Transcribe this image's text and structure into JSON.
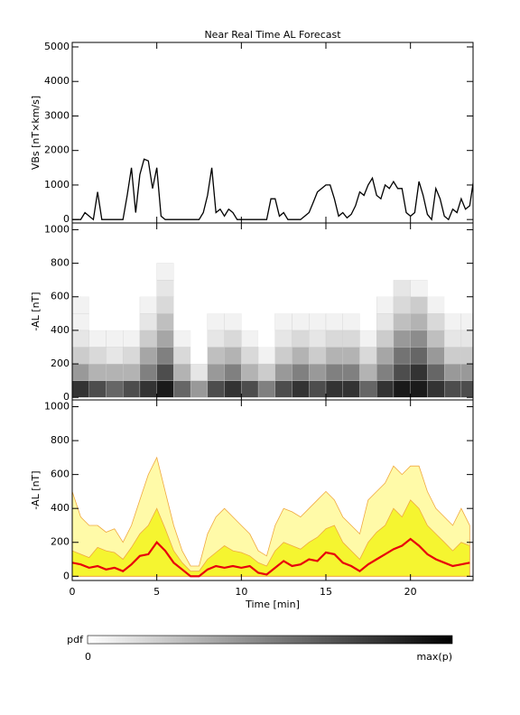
{
  "chart_data": [
    {
      "type": "line",
      "title": "Near Real Time AL Forecast",
      "ylabel": "VBs [nT×km/s]",
      "x": [
        0,
        0.25,
        0.5,
        0.75,
        1,
        1.25,
        1.5,
        1.75,
        2,
        2.25,
        2.5,
        2.75,
        3,
        3.25,
        3.5,
        3.75,
        4,
        4.25,
        4.5,
        4.75,
        5,
        5.25,
        5.5,
        5.75,
        6,
        6.25,
        6.5,
        6.75,
        7,
        7.25,
        7.5,
        7.75,
        8,
        8.25,
        8.5,
        8.75,
        9,
        9.25,
        9.5,
        9.75,
        10,
        10.25,
        10.5,
        10.75,
        11,
        11.25,
        11.5,
        11.75,
        12,
        12.25,
        12.5,
        12.75,
        13,
        13.25,
        13.5,
        13.75,
        14,
        14.25,
        14.5,
        14.75,
        15,
        15.25,
        15.5,
        15.75,
        16,
        16.25,
        16.5,
        16.75,
        17,
        17.25,
        17.5,
        17.75,
        18,
        18.25,
        18.5,
        18.75,
        19,
        19.25,
        19.5,
        19.75,
        20,
        20.25,
        20.5,
        20.75,
        21,
        21.25,
        21.5,
        21.75,
        22,
        22.25,
        22.5,
        22.75,
        23,
        23.25,
        23.5,
        23.75
      ],
      "series": [
        {
          "color": "#000000",
          "values": [
            0,
            0,
            0,
            200,
            100,
            0,
            800,
            0,
            0,
            0,
            0,
            0,
            0,
            700,
            1500,
            200,
            1300,
            1750,
            1700,
            900,
            1500,
            100,
            0,
            0,
            0,
            0,
            0,
            0,
            0,
            0,
            0,
            200,
            700,
            1500,
            200,
            300,
            100,
            300,
            200,
            0,
            0,
            0,
            0,
            0,
            0,
            0,
            0,
            600,
            600,
            100,
            200,
            0,
            0,
            0,
            0,
            100,
            200,
            500,
            800,
            900,
            1000,
            1000,
            600,
            100,
            200,
            50,
            150,
            400,
            800,
            700,
            1000,
            1200,
            700,
            600,
            1000,
            900,
            1100,
            900,
            900,
            200,
            100,
            200,
            1100,
            700,
            150,
            0,
            900,
            600,
            100,
            0,
            300,
            200,
            600,
            300,
            400,
            1200
          ]
        }
      ],
      "xlim": [
        0,
        23.7
      ],
      "xticks": [
        0,
        5,
        10,
        15,
        20
      ],
      "show_xtick_labels": false,
      "ylim": [
        -100,
        5130
      ],
      "yticks": [
        0,
        1000,
        2000,
        3000,
        4000,
        5000
      ]
    },
    {
      "type": "heatmap",
      "ylabel": "-AL [nT]",
      "xbins": [
        0,
        1,
        2,
        3,
        4,
        5,
        6,
        7,
        8,
        9,
        10,
        11,
        12,
        13,
        14,
        15,
        16,
        17,
        18,
        19,
        20,
        21,
        22,
        23,
        24
      ],
      "ybins": [
        0,
        100,
        200,
        300,
        400,
        500,
        600,
        700,
        800
      ],
      "z": [
        [
          0.8,
          0.7,
          0.6,
          0.7,
          0.8,
          0.9,
          0.6,
          0.4,
          0.7,
          0.8,
          0.7,
          0.5,
          0.7,
          0.8,
          0.7,
          0.8,
          0.8,
          0.6,
          0.8,
          0.9,
          0.9,
          0.8,
          0.7,
          0.7
        ],
        [
          0.4,
          0.3,
          0.3,
          0.3,
          0.5,
          0.7,
          0.3,
          0.1,
          0.4,
          0.5,
          0.3,
          0.2,
          0.4,
          0.5,
          0.4,
          0.5,
          0.5,
          0.3,
          0.5,
          0.7,
          0.8,
          0.6,
          0.4,
          0.4
        ],
        [
          0.2,
          0.15,
          0.1,
          0.15,
          0.35,
          0.5,
          0.15,
          0,
          0.25,
          0.3,
          0.15,
          0.05,
          0.2,
          0.3,
          0.2,
          0.3,
          0.3,
          0.15,
          0.35,
          0.55,
          0.6,
          0.4,
          0.2,
          0.2
        ],
        [
          0.1,
          0.05,
          0.05,
          0.05,
          0.2,
          0.35,
          0.05,
          0,
          0.1,
          0.15,
          0.05,
          0,
          0.1,
          0.15,
          0.1,
          0.15,
          0.15,
          0.05,
          0.2,
          0.4,
          0.45,
          0.25,
          0.1,
          0.1
        ],
        [
          0.05,
          0,
          0,
          0,
          0.1,
          0.25,
          0,
          0,
          0.05,
          0.05,
          0,
          0,
          0.05,
          0.05,
          0.05,
          0.05,
          0.05,
          0,
          0.1,
          0.25,
          0.3,
          0.15,
          0.05,
          0.05
        ],
        [
          0.05,
          0,
          0,
          0,
          0.05,
          0.15,
          0,
          0,
          0,
          0,
          0,
          0,
          0,
          0,
          0,
          0,
          0,
          0,
          0.05,
          0.15,
          0.2,
          0.05,
          0,
          0
        ],
        [
          0,
          0,
          0,
          0,
          0,
          0.1,
          0,
          0,
          0,
          0,
          0,
          0,
          0,
          0,
          0,
          0,
          0,
          0,
          0,
          0.1,
          0.05,
          0,
          0,
          0
        ],
        [
          0,
          0,
          0,
          0,
          0,
          0.05,
          0,
          0,
          0,
          0,
          0,
          0,
          0,
          0,
          0,
          0,
          0,
          0,
          0,
          0,
          0,
          0,
          0,
          0
        ]
      ],
      "colormap": [
        "#ffffff",
        "#000000"
      ],
      "colorbar": {
        "label": "pdf",
        "min_label": "0",
        "max_label": "max(p)"
      },
      "xlim": [
        0,
        23.7
      ],
      "xticks": [
        0,
        5,
        10,
        15,
        20
      ],
      "show_xtick_labels": false,
      "ylim": [
        -15,
        1040
      ],
      "yticks": [
        0,
        200,
        400,
        600,
        800,
        1000
      ]
    },
    {
      "type": "band",
      "ylabel": "-AL [nT]",
      "xlabel": "Time [min]",
      "x": [
        0,
        0.5,
        1,
        1.5,
        2,
        2.5,
        3,
        3.5,
        4,
        4.5,
        5,
        5.5,
        6,
        6.5,
        7,
        7.5,
        8,
        8.5,
        9,
        9.5,
        10,
        10.5,
        11,
        11.5,
        12,
        12.5,
        13,
        13.5,
        14,
        14.5,
        15,
        15.5,
        16,
        16.5,
        17,
        17.5,
        18,
        18.5,
        19,
        19.5,
        20,
        20.5,
        21,
        21.5,
        22,
        22.5,
        23,
        23.5
      ],
      "series": [
        {
          "style": "area",
          "color": "#fffaa8",
          "edge_color": "#f0a840",
          "values": [
            500,
            350,
            300,
            300,
            260,
            280,
            200,
            300,
            450,
            600,
            700,
            500,
            300,
            150,
            60,
            60,
            250,
            350,
            400,
            350,
            300,
            250,
            150,
            120,
            300,
            400,
            380,
            350,
            400,
            450,
            500,
            450,
            350,
            300,
            250,
            450,
            500,
            550,
            650,
            600,
            650,
            650,
            500,
            400,
            350,
            300,
            400,
            300
          ]
        },
        {
          "style": "area",
          "color": "#f5f530",
          "edge_color": "#f0a840",
          "values": [
            150,
            130,
            110,
            170,
            150,
            140,
            100,
            170,
            250,
            300,
            400,
            280,
            150,
            80,
            30,
            30,
            100,
            140,
            180,
            150,
            140,
            120,
            80,
            60,
            150,
            200,
            180,
            160,
            200,
            230,
            280,
            300,
            200,
            150,
            100,
            200,
            260,
            300,
            400,
            350,
            450,
            400,
            300,
            250,
            200,
            150,
            200,
            180
          ]
        },
        {
          "style": "line",
          "color": "#e8000b",
          "values": [
            80,
            70,
            50,
            60,
            40,
            50,
            30,
            70,
            120,
            130,
            200,
            150,
            80,
            40,
            0,
            0,
            40,
            60,
            50,
            60,
            50,
            60,
            20,
            10,
            50,
            90,
            60,
            70,
            100,
            90,
            140,
            130,
            80,
            60,
            30,
            70,
            100,
            130,
            160,
            180,
            220,
            180,
            130,
            100,
            80,
            60,
            70,
            80
          ]
        }
      ],
      "xlim": [
        0,
        23.7
      ],
      "xticks": [
        0,
        5,
        10,
        15,
        20
      ],
      "show_xtick_labels": true,
      "ylim": [
        -25,
        1040
      ],
      "yticks": [
        0,
        200,
        400,
        600,
        800,
        1000
      ]
    }
  ]
}
